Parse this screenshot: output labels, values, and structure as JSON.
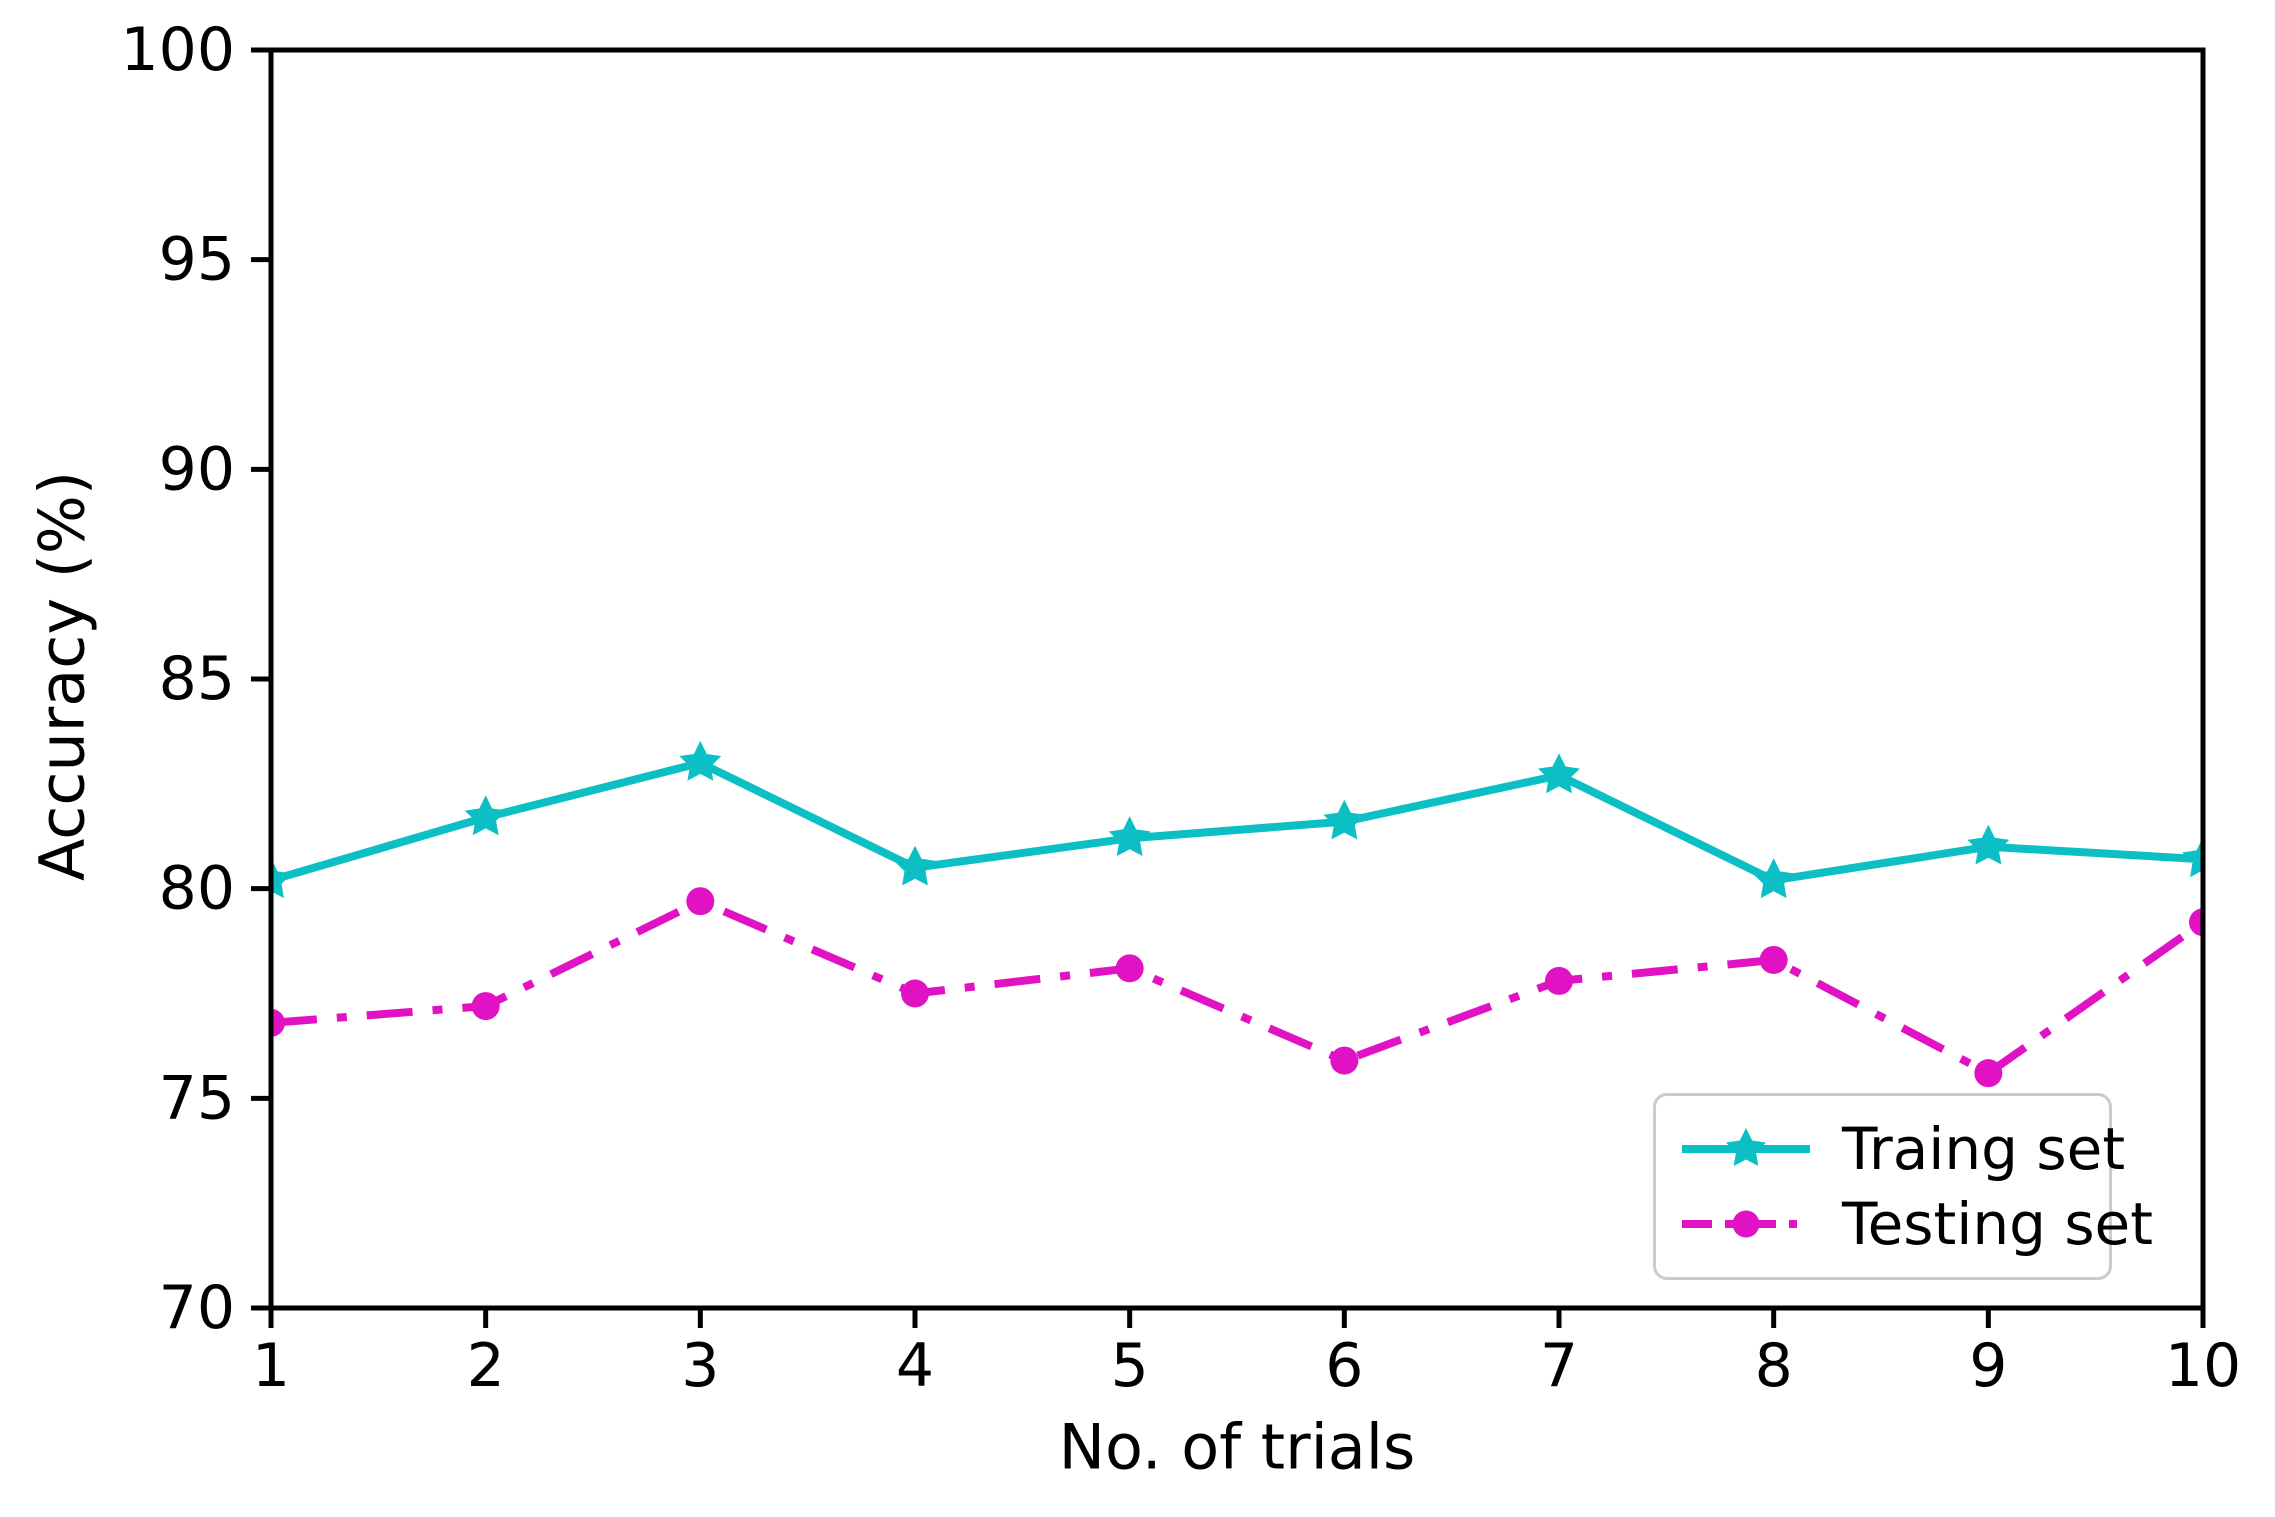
{
  "figure": {
    "background": "#ffffff",
    "axis_color": "#000000"
  },
  "chart_data": {
    "type": "line",
    "title": "",
    "xlabel": "No. of trials",
    "ylabel": "Accuracy (%)",
    "xlim": [
      1,
      10
    ],
    "ylim": [
      70,
      100
    ],
    "xticks": [
      1,
      2,
      3,
      4,
      5,
      6,
      7,
      8,
      9,
      10
    ],
    "yticks": [
      70,
      75,
      80,
      85,
      90,
      95,
      100
    ],
    "grid": false,
    "legend_position": "lower right",
    "x": [
      1,
      2,
      3,
      4,
      5,
      6,
      7,
      8,
      9,
      10
    ],
    "series": [
      {
        "name": "Traing set",
        "color": "#0bbfc4",
        "line_style": "solid",
        "marker": "star",
        "values": [
          80.2,
          81.7,
          83.0,
          80.5,
          81.2,
          81.6,
          82.7,
          80.2,
          81.0,
          80.7
        ]
      },
      {
        "name": "Testing set",
        "color": "#e012c4",
        "line_style": "dashdot",
        "marker": "circle",
        "values": [
          76.8,
          77.2,
          79.7,
          77.5,
          78.1,
          75.9,
          77.8,
          78.3,
          75.6,
          79.2
        ]
      }
    ]
  }
}
